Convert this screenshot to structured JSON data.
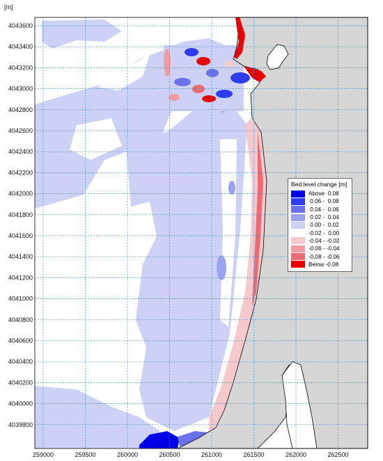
{
  "axis_unit": "[m]",
  "x_ticks": [
    "259000",
    "259500",
    "260000",
    "260500",
    "261000",
    "261500",
    "262000",
    "262500"
  ],
  "y_ticks": [
    "4043600",
    "4043400",
    "4043200",
    "4043000",
    "4042800",
    "4042600",
    "4042400",
    "4042200",
    "4042000",
    "4041800",
    "4041600",
    "4041400",
    "4041200",
    "4041000",
    "4040800",
    "4040600",
    "4040400",
    "4040200",
    "4040000",
    "4039800"
  ],
  "legend": {
    "title": "Bed level change [m]",
    "items": [
      {
        "label": "Above  0.08",
        "color": "#0000e6"
      },
      {
        "label": " 0.06 -  0.08",
        "color": "#2d3cf0"
      },
      {
        "label": " 0.04 -  0.06",
        "color": "#6a72ea"
      },
      {
        "label": " 0.02 -  0.04",
        "color": "#9ca3ee"
      },
      {
        "label": " 0.00 -  0.02",
        "color": "#cdd1f6"
      },
      {
        "label": "-0.02 -  0.00",
        "color": "#ffffff"
      },
      {
        "label": "-0.04 - -0.02",
        "color": "#f6c9cc"
      },
      {
        "label": "-0.06 - -0.04",
        "color": "#f09ca2"
      },
      {
        "label": "-0.08 - -0.06",
        "color": "#ec6a72"
      },
      {
        "label": "Below -0.08",
        "color": "#e60000"
      }
    ]
  },
  "colors": {
    "land": "#d6d6d6",
    "grid": "#3a8fe0",
    "coastline": "#000000"
  }
}
